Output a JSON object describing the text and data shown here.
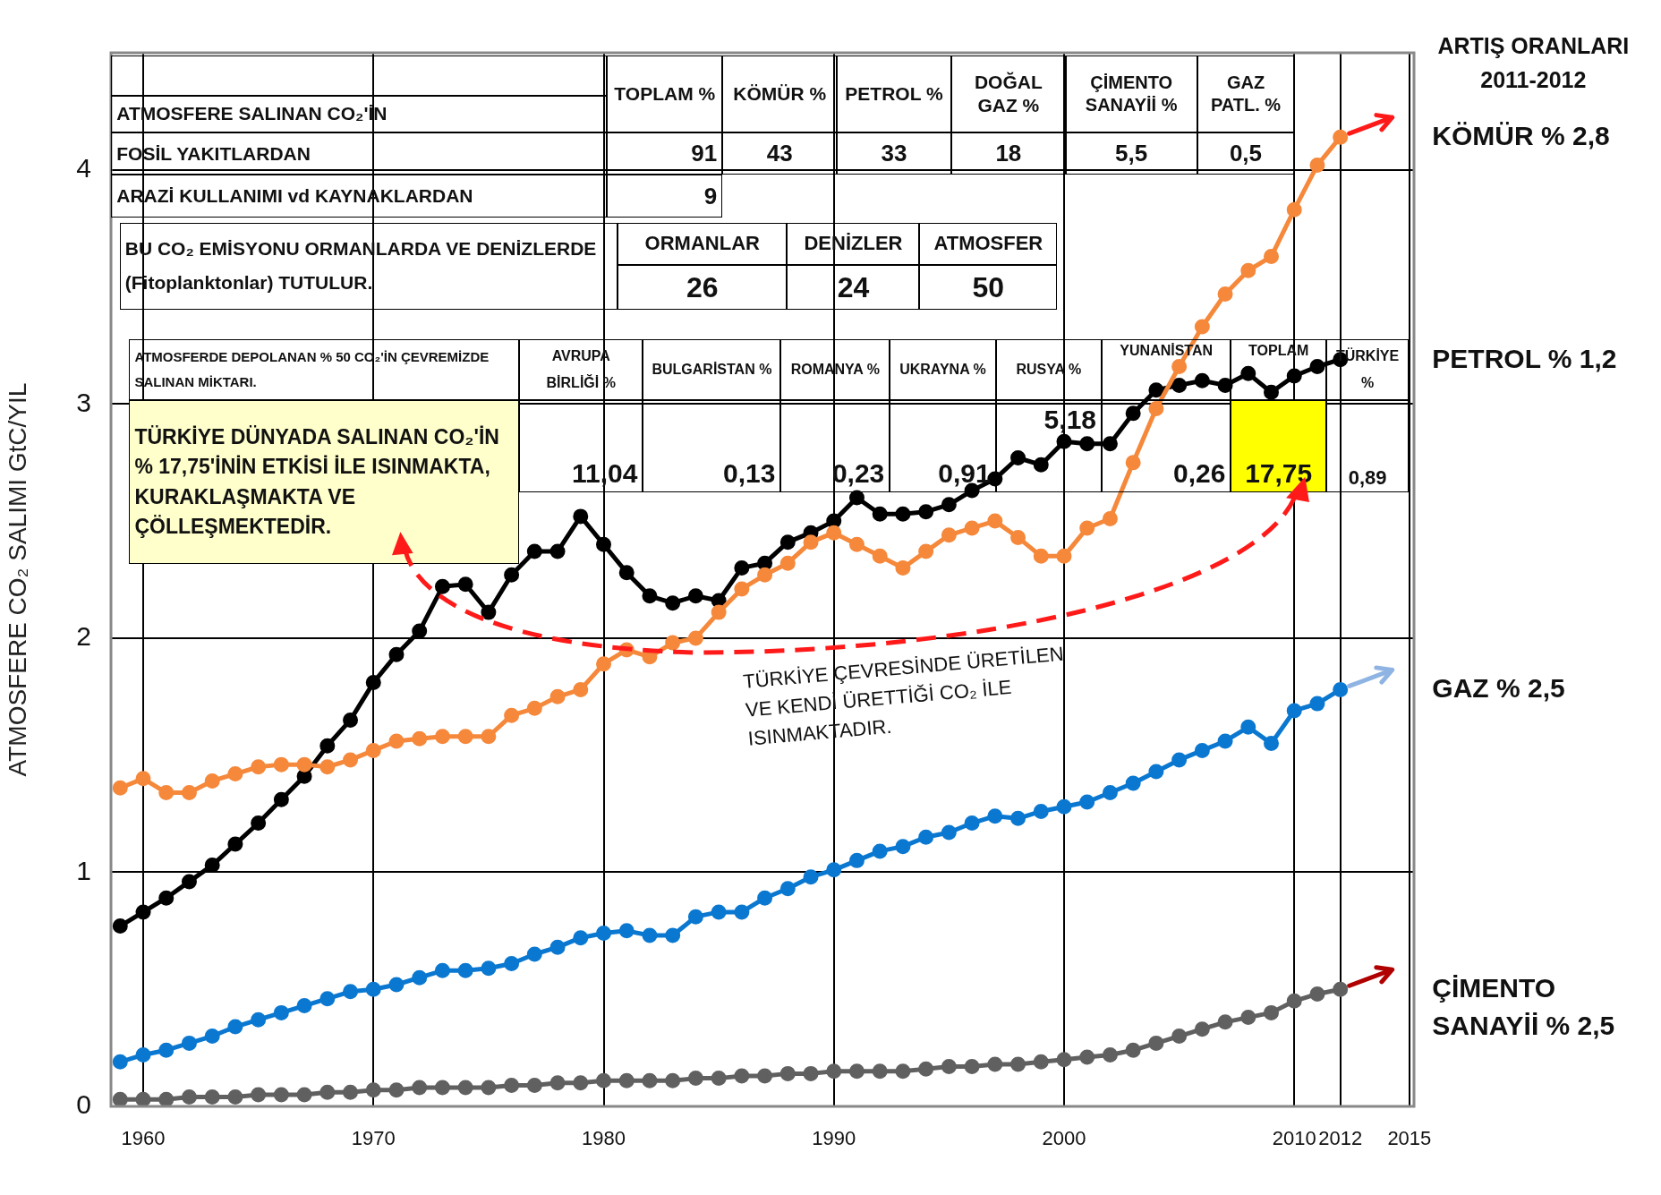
{
  "chart_data": {
    "type": "line",
    "ylabel": "ATMOSFERE CO₂ SALIMI GtC/YIL",
    "x": [
      1959,
      1960,
      1961,
      1962,
      1963,
      1964,
      1965,
      1966,
      1967,
      1968,
      1969,
      1970,
      1971,
      1972,
      1973,
      1974,
      1975,
      1976,
      1977,
      1978,
      1979,
      1980,
      1981,
      1982,
      1983,
      1984,
      1985,
      1986,
      1987,
      1988,
      1989,
      1990,
      1991,
      1992,
      1993,
      1994,
      1995,
      1996,
      1997,
      1998,
      1999,
      2000,
      2001,
      2002,
      2003,
      2004,
      2005,
      2006,
      2007,
      2008,
      2009,
      2010,
      2011,
      2012
    ],
    "xlim": [
      1958.6,
      2015.2
    ],
    "xticks": [
      1960,
      1970,
      1980,
      1990,
      2000,
      2010,
      2012,
      2015
    ],
    "ylim": [
      0,
      4.5
    ],
    "yticks": [
      0,
      1,
      2,
      3,
      4
    ],
    "grid": true,
    "marker": "circle",
    "line_style": "solid",
    "series": [
      {
        "name": "KÖMÜR % 2,8",
        "color": "#f5883a",
        "values": [
          1.36,
          1.4,
          1.34,
          1.34,
          1.39,
          1.42,
          1.45,
          1.46,
          1.46,
          1.45,
          1.48,
          1.52,
          1.56,
          1.57,
          1.58,
          1.58,
          1.58,
          1.67,
          1.7,
          1.75,
          1.78,
          1.89,
          1.95,
          1.92,
          1.98,
          2.0,
          2.11,
          2.21,
          2.27,
          2.32,
          2.41,
          2.45,
          2.4,
          2.35,
          2.3,
          2.37,
          2.44,
          2.47,
          2.5,
          2.43,
          2.35,
          2.35,
          2.47,
          2.51,
          2.75,
          2.98,
          3.16,
          3.33,
          3.47,
          3.57,
          3.63,
          3.83,
          4.02,
          4.14
        ]
      },
      {
        "name": "PETROL % 1,2",
        "color": "#000000",
        "values": [
          0.77,
          0.83,
          0.89,
          0.96,
          1.03,
          1.12,
          1.21,
          1.31,
          1.41,
          1.54,
          1.65,
          1.81,
          1.93,
          2.03,
          2.22,
          2.23,
          2.11,
          2.27,
          2.37,
          2.37,
          2.52,
          2.4,
          2.28,
          2.18,
          2.15,
          2.18,
          2.16,
          2.3,
          2.32,
          2.41,
          2.45,
          2.5,
          2.6,
          2.53,
          2.53,
          2.54,
          2.57,
          2.63,
          2.68,
          2.77,
          2.74,
          2.84,
          2.83,
          2.83,
          2.96,
          3.06,
          3.08,
          3.1,
          3.08,
          3.13,
          3.05,
          3.12,
          3.16,
          3.19
        ]
      },
      {
        "name": "GAZ % 2,5",
        "color": "#0a78d0",
        "values": [
          0.19,
          0.22,
          0.24,
          0.27,
          0.3,
          0.34,
          0.37,
          0.4,
          0.43,
          0.46,
          0.49,
          0.5,
          0.52,
          0.55,
          0.58,
          0.58,
          0.59,
          0.61,
          0.65,
          0.68,
          0.72,
          0.74,
          0.75,
          0.73,
          0.73,
          0.81,
          0.83,
          0.83,
          0.89,
          0.93,
          0.98,
          1.01,
          1.05,
          1.09,
          1.11,
          1.15,
          1.17,
          1.21,
          1.24,
          1.23,
          1.26,
          1.28,
          1.3,
          1.34,
          1.38,
          1.43,
          1.48,
          1.52,
          1.56,
          1.62,
          1.55,
          1.69,
          1.72,
          1.78
        ]
      },
      {
        "name": "ÇİMENTO SANAYİİ % 2,5",
        "color": "#606060",
        "values": [
          0.03,
          0.03,
          0.03,
          0.04,
          0.04,
          0.04,
          0.05,
          0.05,
          0.05,
          0.06,
          0.06,
          0.07,
          0.07,
          0.08,
          0.08,
          0.08,
          0.08,
          0.09,
          0.09,
          0.1,
          0.1,
          0.11,
          0.11,
          0.11,
          0.11,
          0.12,
          0.12,
          0.13,
          0.13,
          0.14,
          0.14,
          0.15,
          0.15,
          0.15,
          0.15,
          0.16,
          0.17,
          0.17,
          0.18,
          0.18,
          0.19,
          0.2,
          0.21,
          0.22,
          0.24,
          0.27,
          0.3,
          0.33,
          0.36,
          0.38,
          0.4,
          0.45,
          0.48,
          0.5
        ]
      }
    ],
    "annotations": [
      "TOPLAM %",
      "KÖMÜR %",
      "PETROL %",
      "DOĞAL GAZ %",
      "ÇİMENTO SANAYİİ %",
      "GAZ PATL. %",
      "ATMOSFERE SALINAN CO₂'İN",
      "FOSİL YAKITLARDAN",
      "91",
      "43",
      "33",
      "18",
      "5,5",
      "0,5",
      "ARAZİ KULLANIMI vd KAYNAKLARDAN",
      "9",
      "BU CO₂ EMİSYONU ORMANLARDA VE DENİZLERDE (Fitoplanktonlar) TUTULUR.",
      "ORMANLAR",
      "DENİZLER",
      "ATMOSFER",
      "26",
      "24",
      "50",
      "ATMOSFERDE DEPOLANAN % 50 CO₂'İN ÇEVREMİZDE SALINAN MİKTARI.",
      "AVRUPA BİRLİĞİ %",
      "BULGARİSTAN %",
      "ROMANYA %",
      "UKRAYNA %",
      "RUSYA %",
      "YUNANİSTAN",
      "TOPLAM",
      "TÜRKİYE %",
      "11,04",
      "0,13",
      "0,23",
      "0,91",
      "5,18",
      "0,26",
      "17,75",
      "0,89",
      "TÜRKİYE DÜNYADA SALINAN CO₂'İN % 17,75'İNİN ETKİSİ İLE ISINMAKTA, KURAKLAŞMAKTA VE ÇÖLLEŞMEKTEDİR.",
      "TÜRKİYE ÇEVRESİNDE ÜRETİLEN VE KENDİ ÜRETTİĞİ CO₂ İLE ISINMAKTADIR.",
      "ARTIŞ ORANLARI 2011-2012"
    ]
  }
}
